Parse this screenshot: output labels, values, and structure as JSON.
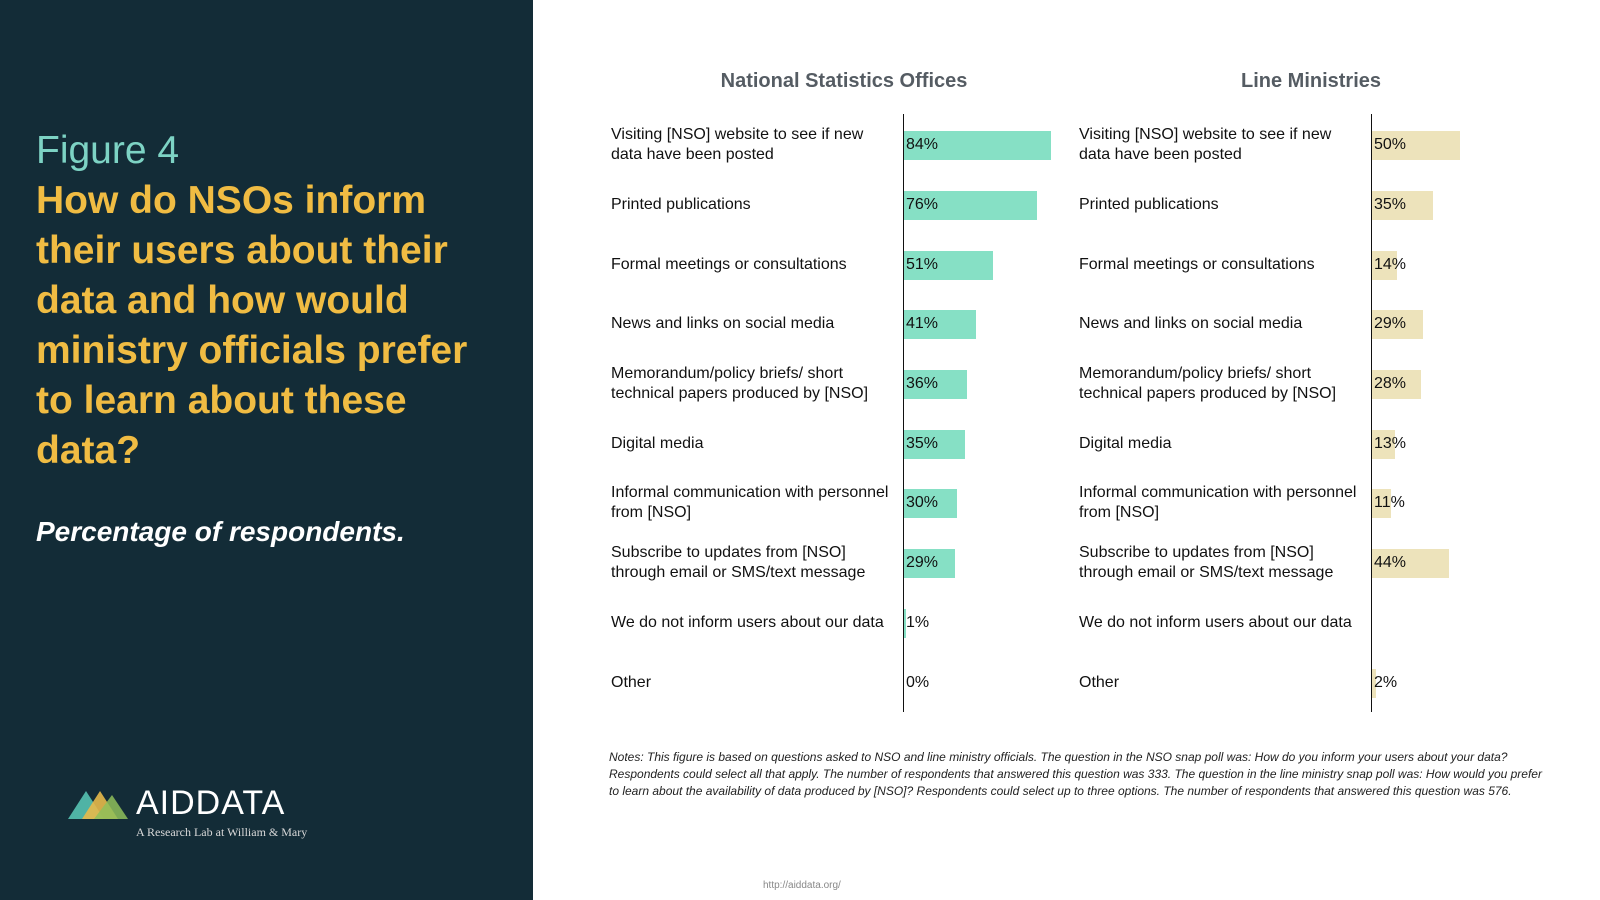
{
  "figure_label": "Figure 4",
  "figure_title": "How do NSOs inform their users about their data and how would ministry officials prefer to learn about these data?",
  "figure_subtitle": "Percentage of respondents.",
  "logo": {
    "name": "AIDDATA",
    "tagline": "A Research Lab at William & Mary"
  },
  "notes": "Notes: This figure is based on questions asked to NSO and line ministry officials. The question in the NSO snap poll was: How do you inform your users about your data? Respondents could select all that apply. The number of respondents that answered this question was 333. The question in the line ministry snap poll was: How would you prefer to learn about the availability of data produced by [NSO]? Respondents could select up to three options. The number of respondents that answered this question was 576.",
  "footer_url": "http://aiddata.org/",
  "colors": {
    "nso_bar": "#86e0c5",
    "lm_bar": "#ede3bb",
    "left_bg": "#132c37",
    "title": "#f0bc43",
    "label": "#7dd3c4"
  },
  "chart_data": [
    {
      "type": "bar",
      "orientation": "horizontal",
      "title": "National Statistics Offices",
      "categories": [
        "Visiting [NSO] website to see if new data have been posted",
        "Printed publications",
        "Formal meetings or consultations",
        "News and links on social media",
        "Memorandum/policy briefs/ short technical papers produced by [NSO]",
        "Digital media",
        "Informal communication with personnel from [NSO]",
        "Subscribe to updates from [NSO] through email or SMS/text message",
        "We do not inform users about our data",
        "Other"
      ],
      "values": [
        84,
        76,
        51,
        41,
        36,
        35,
        30,
        29,
        1,
        0
      ],
      "labels": [
        "84%",
        "76%",
        "51%",
        "41%",
        "36%",
        "35%",
        "30%",
        "29%",
        "1%",
        "0%"
      ],
      "xlim": [
        0,
        100
      ]
    },
    {
      "type": "bar",
      "orientation": "horizontal",
      "title": "Line Ministries",
      "categories": [
        "Visiting [NSO] website to see if new data have been posted",
        "Printed publications",
        "Formal meetings or consultations",
        "News and links on social media",
        "Memorandum/policy briefs/ short technical papers produced by [NSO]",
        "Digital media",
        "Informal communication with personnel from [NSO]",
        "Subscribe to updates from [NSO] through email or SMS/text message",
        "We do not inform users about our data",
        "Other"
      ],
      "values": [
        50,
        35,
        14,
        29,
        28,
        13,
        11,
        44,
        null,
        2
      ],
      "labels": [
        "50%",
        "35%",
        "14%",
        "29%",
        "28%",
        "13%",
        "11%",
        "44%",
        "",
        "2%"
      ],
      "xlim": [
        0,
        100
      ]
    }
  ]
}
